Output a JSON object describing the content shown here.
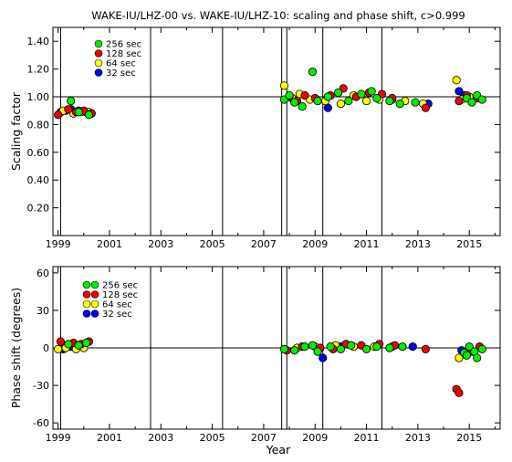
{
  "title": "WAKE-IU/LHZ-00 vs. WAKE-IU/LHZ-10: scaling and phase shift, c>0.999",
  "xlabel": "Year",
  "chart_data": [
    {
      "type": "scatter",
      "ylabel": "Scaling factor",
      "xlim": [
        1998.8,
        2016.2
      ],
      "ylim": [
        0.0,
        1.5
      ],
      "yticks": [
        0.2,
        0.4,
        0.6,
        0.8,
        1.0,
        1.2,
        1.4
      ],
      "ytick_labels": [
        "0.20",
        "0.40",
        "0.60",
        "0.80",
        "1.00",
        "1.20",
        "1.40"
      ],
      "xticks": [
        1999,
        2001,
        2003,
        2005,
        2007,
        2009,
        2011,
        2013,
        2015
      ],
      "xtick_labels": [
        "1999",
        "2001",
        "2003",
        "2005",
        "2007",
        "2009",
        "2011",
        "2013",
        "2015"
      ],
      "reference_line": 1.0,
      "event_lines": [
        1999.1,
        2002.6,
        2005.4,
        2007.7,
        2007.9,
        2009.3,
        2011.6
      ],
      "legend": [
        "256 sec",
        "128 sec",
        "64 sec",
        "32 sec"
      ],
      "series": [
        {
          "name": "32 sec",
          "color": "#0000ee",
          "points": [
            [
              1999.1,
              0.89
            ],
            [
              1999.3,
              0.9
            ],
            [
              1999.5,
              0.91
            ],
            [
              1999.8,
              0.9
            ],
            [
              2000.1,
              0.89
            ],
            [
              2000.3,
              0.88
            ],
            [
              2009.5,
              0.92
            ],
            [
              2013.4,
              0.95
            ],
            [
              2014.6,
              1.04
            ],
            [
              2014.8,
              1.01
            ]
          ]
        },
        {
          "name": "64 sec",
          "color": "#ffff00",
          "points": [
            [
              1999.2,
              0.9
            ],
            [
              1999.6,
              0.88
            ],
            [
              1999.9,
              0.89
            ],
            [
              2000.2,
              0.89
            ],
            [
              2007.8,
              1.08
            ],
            [
              2008.1,
              0.99
            ],
            [
              2008.4,
              1.02
            ],
            [
              2008.8,
              0.98
            ],
            [
              2009.4,
              0.97
            ],
            [
              2010.0,
              0.95
            ],
            [
              2010.5,
              1.01
            ],
            [
              2011.0,
              0.97
            ],
            [
              2011.5,
              0.98
            ],
            [
              2012.0,
              0.98
            ],
            [
              2012.5,
              0.97
            ],
            [
              2013.2,
              0.95
            ],
            [
              2014.5,
              1.12
            ],
            [
              2014.7,
              0.98
            ],
            [
              2015.0,
              1.0
            ]
          ]
        },
        {
          "name": "128 sec",
          "color": "#ee0000",
          "points": [
            [
              1999.0,
              0.87
            ],
            [
              1999.4,
              0.91
            ],
            [
              1999.7,
              0.89
            ],
            [
              2000.0,
              0.9
            ],
            [
              2000.3,
              0.88
            ],
            [
              2008.0,
              1.0
            ],
            [
              2008.3,
              0.97
            ],
            [
              2008.6,
              1.01
            ],
            [
              2009.0,
              0.99
            ],
            [
              2009.6,
              1.01
            ],
            [
              2010.1,
              1.06
            ],
            [
              2010.6,
              1.0
            ],
            [
              2011.1,
              1.03
            ],
            [
              2011.6,
              1.02
            ],
            [
              2012.0,
              0.99
            ],
            [
              2013.3,
              0.92
            ],
            [
              2014.6,
              0.97
            ],
            [
              2014.9,
              1.01
            ],
            [
              2015.3,
              0.99
            ]
          ]
        },
        {
          "name": "256 sec",
          "color": "#00ee00",
          "points": [
            [
              1999.5,
              0.97
            ],
            [
              1999.8,
              0.89
            ],
            [
              2000.2,
              0.87
            ],
            [
              2007.8,
              0.98
            ],
            [
              2008.0,
              1.01
            ],
            [
              2008.2,
              0.96
            ],
            [
              2008.5,
              0.93
            ],
            [
              2008.9,
              1.18
            ],
            [
              2009.1,
              0.97
            ],
            [
              2009.5,
              1.0
            ],
            [
              2009.9,
              1.03
            ],
            [
              2010.3,
              0.97
            ],
            [
              2010.8,
              1.02
            ],
            [
              2011.2,
              1.04
            ],
            [
              2011.4,
              0.99
            ],
            [
              2011.9,
              0.97
            ],
            [
              2012.3,
              0.95
            ],
            [
              2012.9,
              0.96
            ],
            [
              2014.9,
              0.99
            ],
            [
              2015.1,
              0.96
            ],
            [
              2015.3,
              1.01
            ],
            [
              2015.5,
              0.98
            ]
          ]
        }
      ]
    },
    {
      "type": "scatter",
      "ylabel": "Phase shift (degrees)",
      "xlim": [
        1998.8,
        2016.2
      ],
      "ylim": [
        -65,
        65
      ],
      "yticks": [
        -60,
        -30,
        0,
        30,
        60
      ],
      "ytick_labels": [
        "-60",
        "-30",
        "0",
        "30",
        "60"
      ],
      "xticks": [
        1999,
        2001,
        2003,
        2005,
        2007,
        2009,
        2011,
        2013,
        2015
      ],
      "xtick_labels": [
        "1999",
        "2001",
        "2003",
        "2005",
        "2007",
        "2009",
        "2011",
        "2013",
        "2015"
      ],
      "reference_line": 0,
      "event_lines": [
        1999.1,
        2002.6,
        2005.4,
        2007.7,
        2007.9,
        2009.3,
        2011.6
      ],
      "legend": [
        "256 sec",
        "128 sec",
        "64 sec",
        "32 sec"
      ],
      "series": [
        {
          "name": "32 sec",
          "color": "#0000ee",
          "points": [
            [
              1999.2,
              -1
            ],
            [
              1999.5,
              1
            ],
            [
              2009.3,
              -8
            ],
            [
              2010.0,
              1
            ],
            [
              2012.8,
              1
            ],
            [
              2014.7,
              -2
            ]
          ]
        },
        {
          "name": "64 sec",
          "color": "#ffff00",
          "points": [
            [
              1999.0,
              -1
            ],
            [
              1999.3,
              0
            ],
            [
              1999.7,
              -1
            ],
            [
              2000.0,
              0
            ],
            [
              2008.3,
              0
            ],
            [
              2009.0,
              1
            ],
            [
              2009.8,
              2
            ],
            [
              2010.5,
              1
            ],
            [
              2011.3,
              1
            ],
            [
              2012.0,
              1
            ],
            [
              2014.6,
              -8
            ],
            [
              2015.0,
              -2
            ]
          ]
        },
        {
          "name": "128 sec",
          "color": "#ee0000",
          "points": [
            [
              1999.1,
              5
            ],
            [
              1999.6,
              4
            ],
            [
              1999.9,
              3
            ],
            [
              2000.2,
              5
            ],
            [
              2007.9,
              -2
            ],
            [
              2008.5,
              1
            ],
            [
              2009.2,
              0
            ],
            [
              2009.7,
              -1
            ],
            [
              2010.2,
              3
            ],
            [
              2010.8,
              2
            ],
            [
              2011.5,
              3
            ],
            [
              2012.1,
              2
            ],
            [
              2013.3,
              -1
            ],
            [
              2014.5,
              -33
            ],
            [
              2014.6,
              -36
            ],
            [
              2015.1,
              -3
            ],
            [
              2015.4,
              1
            ]
          ]
        },
        {
          "name": "256 sec",
          "color": "#00ee00",
          "points": [
            [
              1999.4,
              3
            ],
            [
              1999.8,
              2
            ],
            [
              2000.1,
              4
            ],
            [
              2007.8,
              -1
            ],
            [
              2008.2,
              -2
            ],
            [
              2008.6,
              1
            ],
            [
              2008.9,
              2
            ],
            [
              2009.1,
              -3
            ],
            [
              2009.6,
              1
            ],
            [
              2010.0,
              -1
            ],
            [
              2010.4,
              2
            ],
            [
              2011.0,
              -1
            ],
            [
              2011.4,
              1
            ],
            [
              2011.9,
              0
            ],
            [
              2012.4,
              1
            ],
            [
              2014.8,
              -4
            ],
            [
              2014.9,
              -6
            ],
            [
              2015.0,
              1
            ],
            [
              2015.2,
              -3
            ],
            [
              2015.3,
              -8
            ],
            [
              2015.5,
              -1
            ]
          ]
        }
      ]
    }
  ]
}
